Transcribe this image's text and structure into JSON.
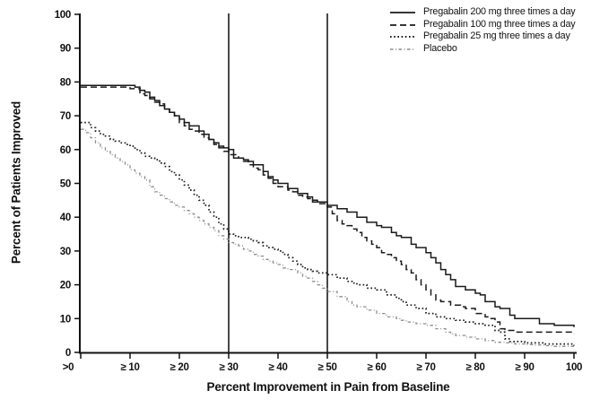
{
  "figure": {
    "background": "#ffffff",
    "line_color": "#1a1a1a",
    "placebo_color": "#8c8c8c"
  },
  "chart_data": {
    "type": "line",
    "subtype": "step-responder-curves",
    "title": "",
    "xlabel": "Percent Improvement in Pain from Baseline",
    "ylabel": "Percent of Patients Improved",
    "xlim": [
      0,
      100
    ],
    "ylim": [
      0,
      100
    ],
    "grid": false,
    "legend_position": "top-right",
    "x_tick_values": [
      0,
      10,
      20,
      30,
      40,
      50,
      60,
      70,
      80,
      90,
      100
    ],
    "x_tick_labels": [
      ">0",
      "≥ 10",
      "≥ 20",
      "≥ 30",
      "≥ 40",
      "≥ 50",
      "≥ 60",
      "≥ 70",
      "≥ 80",
      "≥ 90",
      "100"
    ],
    "y_tick_values": [
      0,
      10,
      20,
      30,
      40,
      50,
      60,
      70,
      80,
      90,
      100
    ],
    "y_tick_labels": [
      "0",
      "10",
      "20",
      "30",
      "40",
      "50",
      "60",
      "70",
      "80",
      "90",
      "100"
    ],
    "reference_lines_x": [
      30,
      50
    ],
    "series": [
      {
        "name": "Pregabalin 200 mg three times a day",
        "style": "solid",
        "color": "#1a1a1a",
        "points": [
          [
            0,
            79
          ],
          [
            9,
            79
          ],
          [
            11,
            78.5
          ],
          [
            12,
            77.5
          ],
          [
            13,
            77
          ],
          [
            14,
            75.5
          ],
          [
            15,
            74.5
          ],
          [
            16,
            73
          ],
          [
            17,
            72
          ],
          [
            18,
            71
          ],
          [
            19,
            70
          ],
          [
            20,
            69
          ],
          [
            21,
            68
          ],
          [
            22,
            67
          ],
          [
            24,
            65.5
          ],
          [
            25,
            64.5
          ],
          [
            26,
            63
          ],
          [
            27,
            62
          ],
          [
            28,
            61
          ],
          [
            29,
            60.5
          ],
          [
            30,
            60
          ],
          [
            31,
            57.5
          ],
          [
            33,
            57
          ],
          [
            34,
            56.5
          ],
          [
            35,
            55.5
          ],
          [
            37,
            53.5
          ],
          [
            38,
            52
          ],
          [
            39,
            51
          ],
          [
            40,
            50
          ],
          [
            42,
            48.5
          ],
          [
            44,
            47
          ],
          [
            46,
            46
          ],
          [
            47,
            45
          ],
          [
            48,
            44.5
          ],
          [
            50,
            43.5
          ],
          [
            52,
            42.5
          ],
          [
            54,
            41.5
          ],
          [
            56,
            40
          ],
          [
            58,
            38.5
          ],
          [
            60,
            37.5
          ],
          [
            61,
            37
          ],
          [
            63,
            35.5
          ],
          [
            64,
            34.5
          ],
          [
            65,
            34
          ],
          [
            67,
            32
          ],
          [
            68,
            31
          ],
          [
            70,
            29.5
          ],
          [
            71,
            28
          ],
          [
            72,
            26.5
          ],
          [
            73,
            24.5
          ],
          [
            74,
            23
          ],
          [
            75,
            21.5
          ],
          [
            76,
            19.5
          ],
          [
            78,
            18.5
          ],
          [
            80,
            17.5
          ],
          [
            81,
            17
          ],
          [
            82,
            15
          ],
          [
            84,
            13.5
          ],
          [
            85,
            13
          ],
          [
            87,
            11
          ],
          [
            88,
            10
          ],
          [
            92,
            10
          ],
          [
            93,
            8.5
          ],
          [
            96,
            8
          ],
          [
            100,
            7.5
          ]
        ]
      },
      {
        "name": "Pregabalin 100 mg three times a day",
        "style": "dashed",
        "color": "#1a1a1a",
        "points": [
          [
            0,
            78.5
          ],
          [
            8,
            78.5
          ],
          [
            10,
            78
          ],
          [
            12,
            76.5
          ],
          [
            13,
            76
          ],
          [
            14,
            75
          ],
          [
            15,
            74
          ],
          [
            16,
            73.5
          ],
          [
            17,
            72
          ],
          [
            18,
            71
          ],
          [
            19,
            70
          ],
          [
            20,
            68
          ],
          [
            21,
            67
          ],
          [
            22,
            66
          ],
          [
            23,
            65.5
          ],
          [
            24,
            64.5
          ],
          [
            25,
            63.5
          ],
          [
            26,
            63
          ],
          [
            27,
            61.5
          ],
          [
            28,
            60.5
          ],
          [
            29,
            59.5
          ],
          [
            30,
            58.5
          ],
          [
            32,
            57.5
          ],
          [
            33,
            56.5
          ],
          [
            34,
            55.5
          ],
          [
            35,
            54.5
          ],
          [
            36,
            54
          ],
          [
            37,
            52.5
          ],
          [
            38,
            51.5
          ],
          [
            39,
            50
          ],
          [
            40,
            49
          ],
          [
            42,
            48
          ],
          [
            43,
            47.5
          ],
          [
            44,
            46.5
          ],
          [
            45,
            46
          ],
          [
            46,
            45.5
          ],
          [
            47,
            44.5
          ],
          [
            48,
            44
          ],
          [
            50,
            43
          ],
          [
            51,
            41
          ],
          [
            52,
            39
          ],
          [
            53,
            38
          ],
          [
            54,
            37.5
          ],
          [
            55,
            36.5
          ],
          [
            56,
            35.5
          ],
          [
            57,
            34
          ],
          [
            58,
            33
          ],
          [
            59,
            32
          ],
          [
            60,
            31
          ],
          [
            61,
            29.5
          ],
          [
            62,
            29
          ],
          [
            63,
            28
          ],
          [
            64,
            27
          ],
          [
            65,
            26
          ],
          [
            66,
            24.5
          ],
          [
            67,
            23.5
          ],
          [
            68,
            21.5
          ],
          [
            69,
            20
          ],
          [
            70,
            18.5
          ],
          [
            71,
            17
          ],
          [
            72,
            15.5
          ],
          [
            73,
            15
          ],
          [
            75,
            14
          ],
          [
            77,
            13.5
          ],
          [
            78,
            13
          ],
          [
            80,
            11.5
          ],
          [
            82,
            10.5
          ],
          [
            83,
            10
          ],
          [
            84,
            9
          ],
          [
            85,
            7
          ],
          [
            86,
            6.5
          ],
          [
            88,
            6
          ],
          [
            100,
            5.5
          ]
        ]
      },
      {
        "name": "Pregabalin 25 mg three times a day",
        "style": "dotted",
        "color": "#1a1a1a",
        "points": [
          [
            0,
            68
          ],
          [
            2,
            66.5
          ],
          [
            3,
            65.5
          ],
          [
            4,
            64.5
          ],
          [
            5,
            64
          ],
          [
            6,
            63
          ],
          [
            7,
            62.5
          ],
          [
            8,
            62
          ],
          [
            9,
            61.5
          ],
          [
            10,
            61
          ],
          [
            11,
            60
          ],
          [
            12,
            59
          ],
          [
            13,
            58
          ],
          [
            14,
            57.5
          ],
          [
            15,
            57
          ],
          [
            16,
            56
          ],
          [
            17,
            55
          ],
          [
            18,
            53.5
          ],
          [
            19,
            52.5
          ],
          [
            20,
            51
          ],
          [
            21,
            49.5
          ],
          [
            22,
            48
          ],
          [
            23,
            46.5
          ],
          [
            24,
            45
          ],
          [
            25,
            43.5
          ],
          [
            26,
            41.5
          ],
          [
            27,
            40
          ],
          [
            28,
            38
          ],
          [
            29,
            36.5
          ],
          [
            30,
            35
          ],
          [
            31,
            34.5
          ],
          [
            32,
            34
          ],
          [
            34,
            33.5
          ],
          [
            35,
            33
          ],
          [
            36,
            32.5
          ],
          [
            37,
            31.5
          ],
          [
            38,
            31
          ],
          [
            39,
            30.5
          ],
          [
            40,
            30
          ],
          [
            41,
            29
          ],
          [
            42,
            28
          ],
          [
            43,
            27
          ],
          [
            44,
            26
          ],
          [
            45,
            25
          ],
          [
            46,
            24.5
          ],
          [
            47,
            24
          ],
          [
            48,
            23.5
          ],
          [
            50,
            23
          ],
          [
            52,
            22
          ],
          [
            54,
            21
          ],
          [
            55,
            20.5
          ],
          [
            56,
            20
          ],
          [
            58,
            19
          ],
          [
            60,
            18.5
          ],
          [
            62,
            17
          ],
          [
            64,
            16
          ],
          [
            65,
            15
          ],
          [
            66,
            14
          ],
          [
            68,
            13
          ],
          [
            70,
            11.5
          ],
          [
            72,
            10.5
          ],
          [
            74,
            10
          ],
          [
            76,
            9.5
          ],
          [
            78,
            9
          ],
          [
            80,
            8.5
          ],
          [
            82,
            8
          ],
          [
            84,
            6.5
          ],
          [
            85,
            6
          ],
          [
            86,
            4
          ],
          [
            87,
            3.2
          ],
          [
            90,
            2.8
          ],
          [
            94,
            2.5
          ],
          [
            100,
            2
          ]
        ]
      },
      {
        "name": "Placebo",
        "style": "dashdot",
        "color": "#8c8c8c",
        "points": [
          [
            0,
            66
          ],
          [
            1,
            65
          ],
          [
            2,
            63.5
          ],
          [
            3,
            62
          ],
          [
            4,
            60.5
          ],
          [
            5,
            59.5
          ],
          [
            6,
            58.5
          ],
          [
            7,
            57.5
          ],
          [
            8,
            56.5
          ],
          [
            9,
            55.5
          ],
          [
            10,
            54
          ],
          [
            11,
            53
          ],
          [
            12,
            52
          ],
          [
            13,
            51
          ],
          [
            14,
            49
          ],
          [
            15,
            47.5
          ],
          [
            16,
            46.5
          ],
          [
            17,
            45.5
          ],
          [
            18,
            44.5
          ],
          [
            19,
            43.5
          ],
          [
            20,
            43
          ],
          [
            21,
            42
          ],
          [
            22,
            41
          ],
          [
            23,
            40
          ],
          [
            24,
            39
          ],
          [
            25,
            38
          ],
          [
            26,
            37
          ],
          [
            27,
            36
          ],
          [
            28,
            34.5
          ],
          [
            29,
            33.5
          ],
          [
            30,
            32.5
          ],
          [
            31,
            32
          ],
          [
            32,
            31.5
          ],
          [
            33,
            30.5
          ],
          [
            34,
            30
          ],
          [
            35,
            29
          ],
          [
            36,
            28.5
          ],
          [
            37,
            27.5
          ],
          [
            38,
            27
          ],
          [
            39,
            26.5
          ],
          [
            40,
            26
          ],
          [
            41,
            25
          ],
          [
            42,
            24.5
          ],
          [
            44,
            23.5
          ],
          [
            45,
            22.5
          ],
          [
            46,
            22
          ],
          [
            47,
            21
          ],
          [
            48,
            20
          ],
          [
            49,
            19
          ],
          [
            50,
            18
          ],
          [
            52,
            16.5
          ],
          [
            54,
            15
          ],
          [
            55,
            14
          ],
          [
            56,
            13.5
          ],
          [
            58,
            12.5
          ],
          [
            60,
            11.5
          ],
          [
            62,
            10.5
          ],
          [
            64,
            10
          ],
          [
            65,
            9.5
          ],
          [
            66,
            9
          ],
          [
            68,
            8.5
          ],
          [
            70,
            8
          ],
          [
            72,
            7
          ],
          [
            74,
            6
          ],
          [
            75,
            5.5
          ],
          [
            76,
            5
          ],
          [
            78,
            4.5
          ],
          [
            80,
            4
          ],
          [
            82,
            3.5
          ],
          [
            84,
            3
          ],
          [
            86,
            2.8
          ],
          [
            88,
            2.5
          ],
          [
            90,
            2.3
          ],
          [
            92,
            2.2
          ],
          [
            94,
            2
          ],
          [
            96,
            1.8
          ],
          [
            100,
            1.5
          ]
        ]
      }
    ]
  }
}
